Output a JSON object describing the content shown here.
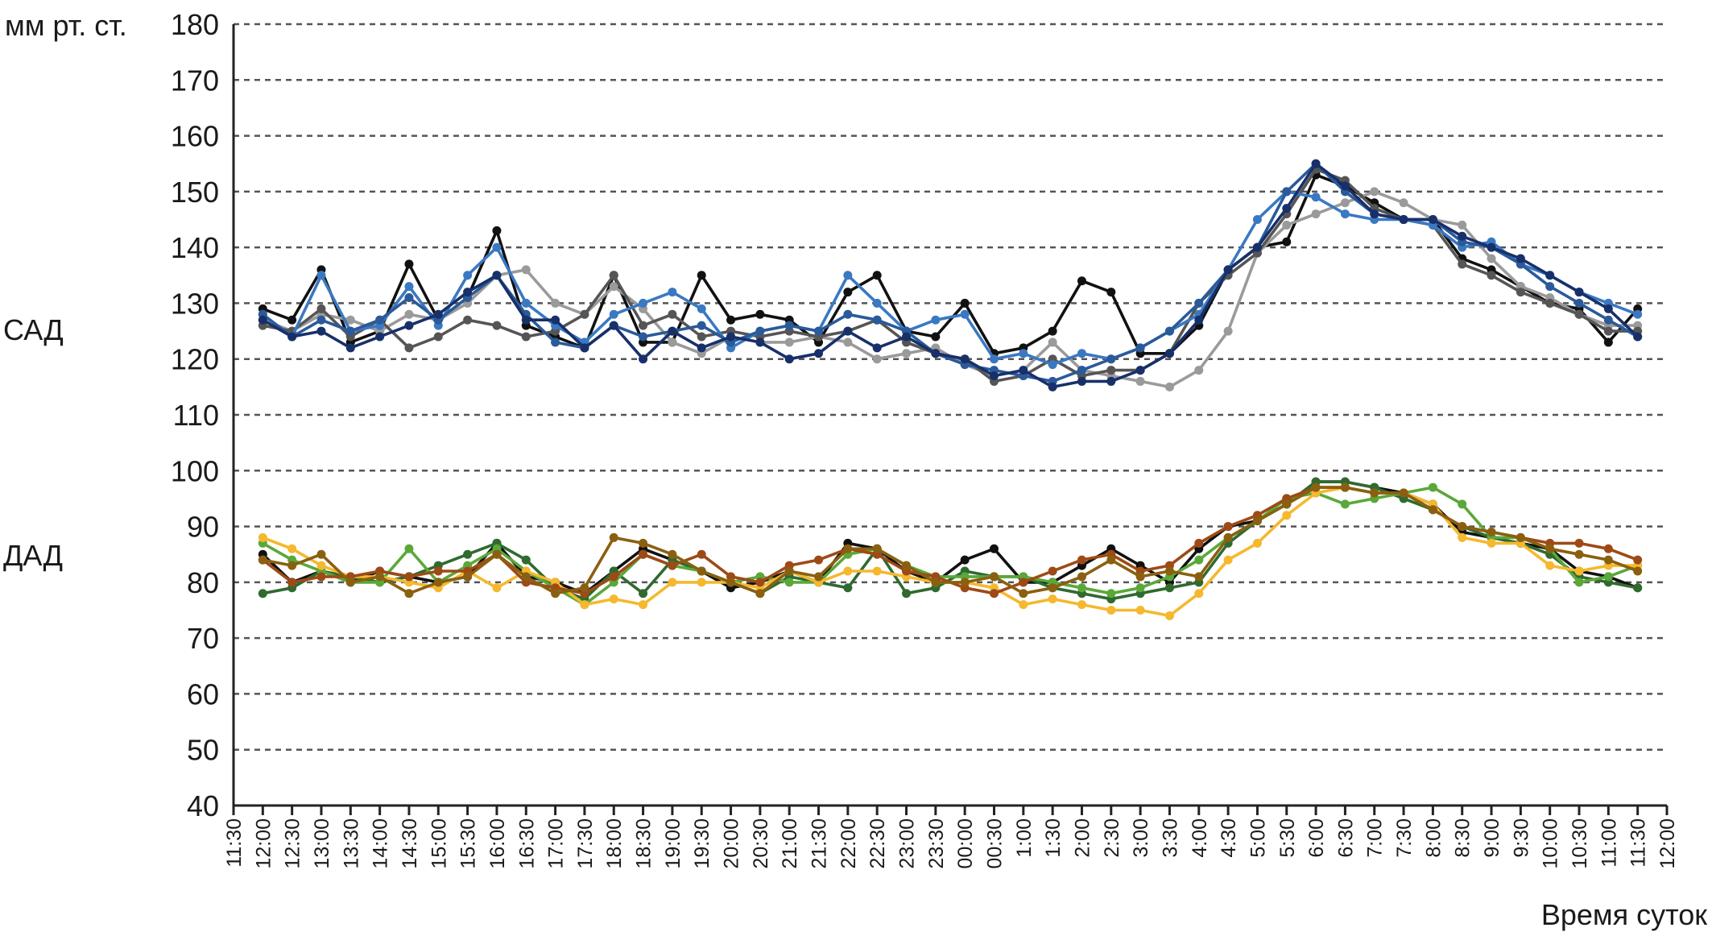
{
  "chart_data": {
    "type": "line",
    "ylabel": "мм рт. ст.",
    "xlabel": "Время суток",
    "group_labels": {
      "sad": "САД",
      "dad": "ДАД"
    },
    "ylim": [
      40,
      180
    ],
    "yticks": [
      40,
      50,
      60,
      70,
      80,
      90,
      100,
      110,
      120,
      130,
      140,
      150,
      160,
      170,
      180
    ],
    "grid": true,
    "x": [
      "11:30",
      "12:00",
      "12:30",
      "13:00",
      "13:30",
      "14:00",
      "14:30",
      "15:00",
      "15:30",
      "16:00",
      "16:30",
      "17:00",
      "17:30",
      "18:00",
      "18:30",
      "19:00",
      "19:30",
      "20:00",
      "20:30",
      "21:00",
      "21:30",
      "22:00",
      "22:30",
      "23:00",
      "23:30",
      "00:00",
      "00:30",
      "1:00",
      "1:30",
      "2:00",
      "2:30",
      "3:00",
      "3:30",
      "4:00",
      "4:30",
      "5:00",
      "5:30",
      "6:00",
      "6:30",
      "7:00",
      "7:30",
      "8:00",
      "8:30",
      "9:00",
      "9:30",
      "10:00",
      "10:30",
      "11:00",
      "11:30",
      "12:00"
    ],
    "series": [
      {
        "group": "САД",
        "color": "#111111",
        "values": [
          null,
          129,
          127,
          136,
          123,
          125,
          137,
          127,
          131,
          143,
          126,
          124,
          122,
          135,
          123,
          123,
          135,
          127,
          128,
          127,
          123,
          132,
          135,
          125,
          124,
          130,
          121,
          122,
          125,
          134,
          132,
          121,
          121,
          126,
          136,
          140,
          141,
          153,
          151,
          148,
          145,
          145,
          138,
          136,
          133,
          130,
          129,
          123,
          129,
          null
        ]
      },
      {
        "group": "САД",
        "color": "#9a9a9a",
        "values": [
          null,
          127,
          125,
          128,
          127,
          125,
          128,
          127,
          130,
          135,
          136,
          130,
          128,
          133,
          129,
          123,
          121,
          124,
          123,
          123,
          124,
          123,
          120,
          121,
          122,
          119,
          117,
          118,
          123,
          118,
          117,
          116,
          115,
          118,
          125,
          139,
          144,
          146,
          148,
          150,
          148,
          145,
          144,
          138,
          133,
          131,
          128,
          126,
          126,
          null
        ]
      },
      {
        "group": "САД",
        "color": "#555555",
        "values": [
          null,
          126,
          125,
          129,
          124,
          127,
          122,
          124,
          127,
          126,
          124,
          125,
          128,
          135,
          126,
          128,
          124,
          125,
          124,
          125,
          124,
          125,
          127,
          123,
          121,
          120,
          116,
          117,
          120,
          117,
          118,
          118,
          121,
          130,
          135,
          139,
          146,
          154,
          152,
          147,
          145,
          144,
          137,
          135,
          132,
          130,
          128,
          125,
          125,
          null
        ]
      },
      {
        "group": "САД",
        "color": "#3a78c2",
        "values": [
          null,
          128,
          124,
          135,
          125,
          126,
          133,
          126,
          135,
          140,
          130,
          126,
          123,
          128,
          130,
          132,
          129,
          122,
          125,
          126,
          125,
          135,
          130,
          125,
          127,
          128,
          120,
          121,
          119,
          121,
          120,
          122,
          125,
          128,
          136,
          145,
          150,
          149,
          146,
          145,
          145,
          144,
          140,
          141,
          137,
          135,
          132,
          130,
          128,
          null
        ]
      },
      {
        "group": "САД",
        "color": "#2a5a9a",
        "values": [
          null,
          128,
          124,
          127,
          125,
          127,
          131,
          127,
          131,
          135,
          128,
          123,
          122,
          126,
          124,
          125,
          126,
          123,
          125,
          126,
          125,
          128,
          127,
          125,
          121,
          119,
          118,
          117,
          116,
          118,
          120,
          122,
          125,
          130,
          136,
          140,
          150,
          155,
          150,
          146,
          145,
          145,
          141,
          140,
          137,
          133,
          130,
          127,
          124,
          null
        ]
      },
      {
        "group": "САД",
        "color": "#18306a",
        "values": [
          null,
          127,
          124,
          125,
          122,
          124,
          126,
          128,
          132,
          135,
          127,
          127,
          122,
          126,
          120,
          125,
          122,
          124,
          123,
          120,
          121,
          125,
          122,
          124,
          121,
          120,
          117,
          118,
          115,
          116,
          116,
          118,
          121,
          127,
          136,
          140,
          147,
          155,
          151,
          146,
          145,
          145,
          142,
          140,
          138,
          135,
          132,
          129,
          124,
          null
        ]
      },
      {
        "group": "ДАД",
        "color": "#111111",
        "values": [
          null,
          85,
          80,
          82,
          80,
          82,
          81,
          80,
          81,
          87,
          81,
          80,
          78,
          82,
          86,
          84,
          82,
          79,
          80,
          82,
          80,
          87,
          86,
          82,
          80,
          84,
          86,
          80,
          80,
          83,
          86,
          83,
          80,
          86,
          90,
          91,
          94,
          98,
          98,
          97,
          96,
          94,
          89,
          88,
          87,
          86,
          82,
          81,
          79,
          null
        ]
      },
      {
        "group": "ДАД",
        "color": "#2f6b2f",
        "values": [
          null,
          78,
          79,
          82,
          81,
          80,
          81,
          83,
          85,
          87,
          84,
          79,
          77,
          82,
          78,
          84,
          82,
          80,
          78,
          81,
          80,
          79,
          86,
          78,
          79,
          82,
          81,
          81,
          79,
          78,
          77,
          78,
          79,
          80,
          87,
          91,
          94,
          98,
          98,
          97,
          95,
          93,
          90,
          88,
          87,
          85,
          81,
          80,
          79,
          null
        ]
      },
      {
        "group": "ДАД",
        "color": "#5aa83a",
        "values": [
          null,
          87,
          84,
          82,
          80,
          80,
          86,
          80,
          83,
          86,
          82,
          79,
          76,
          80,
          85,
          83,
          82,
          80,
          81,
          80,
          80,
          85,
          86,
          83,
          81,
          81,
          81,
          81,
          80,
          79,
          78,
          79,
          81,
          84,
          88,
          91,
          95,
          96,
          94,
          95,
          96,
          97,
          94,
          88,
          88,
          86,
          80,
          81,
          83,
          null
        ]
      },
      {
        "group": "ДАД",
        "color": "#f5b82e",
        "values": [
          null,
          88,
          86,
          83,
          81,
          81,
          80,
          79,
          82,
          79,
          82,
          80,
          76,
          77,
          76,
          80,
          80,
          80,
          79,
          82,
          80,
          82,
          82,
          81,
          80,
          80,
          79,
          76,
          77,
          76,
          75,
          75,
          74,
          78,
          84,
          87,
          92,
          96,
          97,
          96,
          96,
          94,
          88,
          87,
          87,
          83,
          82,
          83,
          83,
          null
        ]
      },
      {
        "group": "ДАД",
        "color": "#9e4a16",
        "values": [
          null,
          84,
          80,
          81,
          81,
          82,
          81,
          82,
          82,
          85,
          80,
          79,
          78,
          81,
          85,
          83,
          85,
          81,
          80,
          83,
          84,
          86,
          85,
          82,
          81,
          79,
          78,
          80,
          82,
          84,
          85,
          82,
          83,
          87,
          90,
          92,
          95,
          97,
          97,
          96,
          96,
          93,
          90,
          89,
          88,
          87,
          87,
          86,
          84,
          null
        ]
      },
      {
        "group": "ДАД",
        "color": "#8a6010",
        "values": [
          null,
          84,
          83,
          85,
          80,
          81,
          78,
          80,
          81,
          85,
          81,
          78,
          79,
          88,
          87,
          85,
          82,
          80,
          78,
          82,
          81,
          86,
          86,
          83,
          80,
          80,
          81,
          78,
          79,
          81,
          84,
          81,
          82,
          81,
          88,
          91,
          94,
          97,
          97,
          96,
          96,
          93,
          90,
          89,
          88,
          86,
          85,
          84,
          82,
          null
        ]
      }
    ]
  }
}
